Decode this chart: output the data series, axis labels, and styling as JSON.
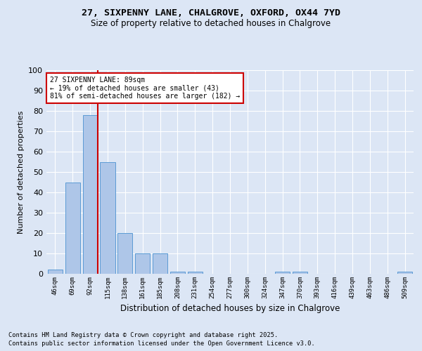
{
  "title_line1": "27, SIXPENNY LANE, CHALGROVE, OXFORD, OX44 7YD",
  "title_line2": "Size of property relative to detached houses in Chalgrove",
  "xlabel": "Distribution of detached houses by size in Chalgrove",
  "ylabel": "Number of detached properties",
  "categories": [
    "46sqm",
    "69sqm",
    "92sqm",
    "115sqm",
    "138sqm",
    "161sqm",
    "185sqm",
    "208sqm",
    "231sqm",
    "254sqm",
    "277sqm",
    "300sqm",
    "324sqm",
    "347sqm",
    "370sqm",
    "393sqm",
    "416sqm",
    "439sqm",
    "463sqm",
    "486sqm",
    "509sqm"
  ],
  "values": [
    2,
    45,
    78,
    55,
    20,
    10,
    10,
    1,
    1,
    0,
    0,
    0,
    0,
    1,
    1,
    0,
    0,
    0,
    0,
    0,
    1
  ],
  "bar_color": "#aec6e8",
  "bar_edge_color": "#5b9bd5",
  "red_line_index": 2,
  "annotation_line1": "27 SIXPENNY LANE: 89sqm",
  "annotation_line2": "← 19% of detached houses are smaller (43)",
  "annotation_line3": "81% of semi-detached houses are larger (182) →",
  "annotation_box_color": "#ffffff",
  "annotation_box_edge": "#cc0000",
  "red_line_color": "#cc0000",
  "footer_line1": "Contains HM Land Registry data © Crown copyright and database right 2025.",
  "footer_line2": "Contains public sector information licensed under the Open Government Licence v3.0.",
  "background_color": "#dce6f5",
  "plot_background_color": "#dce6f5",
  "grid_color": "#ffffff",
  "ylim": [
    0,
    100
  ],
  "yticks": [
    0,
    10,
    20,
    30,
    40,
    50,
    60,
    70,
    80,
    90,
    100
  ]
}
